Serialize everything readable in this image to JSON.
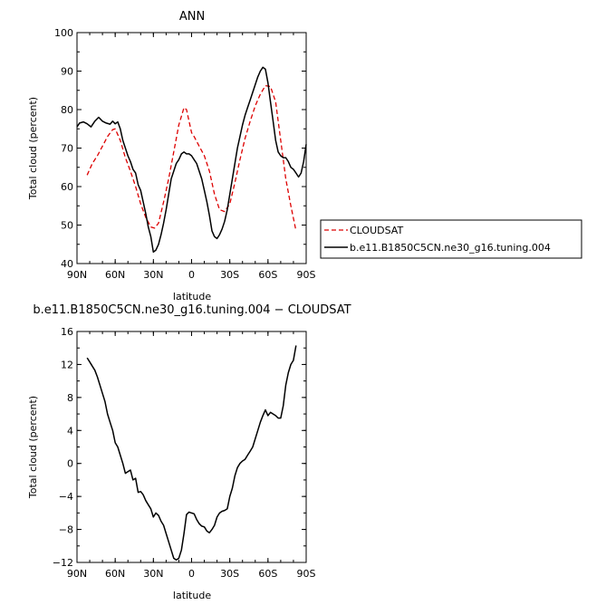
{
  "chart_data": [
    {
      "type": "line",
      "title": "ANN",
      "xlabel": "latitude",
      "ylabel": "Total cloud (percent)",
      "xlim": [
        90,
        -90
      ],
      "ylim": [
        40,
        100
      ],
      "xticks": [
        90,
        60,
        30,
        0,
        -30,
        -60,
        -90
      ],
      "xtick_labels": [
        "90N",
        "60N",
        "30N",
        "0",
        "30S",
        "60S",
        "90S"
      ],
      "yticks": [
        40,
        50,
        60,
        70,
        80,
        90,
        100
      ],
      "ytick_labels": [
        "40",
        "50",
        "60",
        "70",
        "80",
        "90",
        "100"
      ],
      "legend_position": "right",
      "series": [
        {
          "name": "CLOUDSAT",
          "color": "#dd0000",
          "dashed": true,
          "x": [
            82,
            78,
            74,
            70,
            66,
            62,
            60,
            56,
            52,
            48,
            44,
            40,
            36,
            32,
            29,
            26,
            22,
            18,
            14,
            10,
            6,
            4,
            2,
            0,
            -2,
            -6,
            -10,
            -14,
            -18,
            -22,
            -26,
            -30,
            -34,
            -38,
            -42,
            -46,
            -50,
            -54,
            -58,
            -62,
            -66,
            -70,
            -74,
            -78,
            -82
          ],
          "y": [
            63.0,
            66.0,
            68.0,
            70.5,
            73.0,
            74.8,
            75.0,
            72.0,
            67.5,
            64.0,
            60.0,
            55.5,
            52.0,
            49.5,
            49.2,
            50.5,
            56.0,
            62.0,
            69.0,
            76.0,
            80.5,
            80.0,
            77.0,
            74.0,
            73.0,
            70.5,
            68.0,
            64.0,
            58.0,
            54.0,
            53.5,
            55.5,
            61.0,
            67.0,
            72.5,
            77.0,
            81.0,
            84.0,
            86.2,
            86.0,
            82.0,
            72.0,
            62.0,
            55.0,
            48.5
          ]
        },
        {
          "name": "b.e11.B1850C5CN.ne30_g16.tuning.004",
          "color": "#000000",
          "dashed": false,
          "x": [
            90,
            88,
            85,
            82,
            79,
            76,
            73,
            70,
            67,
            64,
            62,
            60,
            58,
            56,
            54,
            52,
            50,
            48,
            46,
            44,
            42,
            40,
            38,
            36,
            34,
            32,
            30,
            28,
            26,
            24,
            22,
            20,
            18,
            16,
            14,
            12,
            10,
            8,
            6,
            4,
            2,
            0,
            -2,
            -4,
            -6,
            -8,
            -10,
            -12,
            -14,
            -16,
            -18,
            -20,
            -22,
            -24,
            -26,
            -28,
            -30,
            -32,
            -34,
            -36,
            -38,
            -40,
            -42,
            -44,
            -46,
            -48,
            -50,
            -52,
            -54,
            -56,
            -58,
            -60,
            -62,
            -64,
            -66,
            -68,
            -70,
            -72,
            -74,
            -76,
            -78,
            -80,
            -82,
            -84,
            -86,
            -88,
            -90
          ],
          "y": [
            75.5,
            76.5,
            76.8,
            76.3,
            75.5,
            77.0,
            78.0,
            77.0,
            76.5,
            76.2,
            77.0,
            76.3,
            76.8,
            75.0,
            72.0,
            70.0,
            68.0,
            66.5,
            64.5,
            63.5,
            60.5,
            59.0,
            56.0,
            53.0,
            49.5,
            47.0,
            43.0,
            43.5,
            45.0,
            47.5,
            50.5,
            54.0,
            58.0,
            62.0,
            64.0,
            66.0,
            67.0,
            68.5,
            69.0,
            68.5,
            68.5,
            68.0,
            67.0,
            66.0,
            64.0,
            62.0,
            59.0,
            56.0,
            52.5,
            48.5,
            47.0,
            46.5,
            47.5,
            49.0,
            51.0,
            54.0,
            58.0,
            62.0,
            66.0,
            70.0,
            73.0,
            76.0,
            78.5,
            80.5,
            82.5,
            84.5,
            86.5,
            88.5,
            90.0,
            91.0,
            90.5,
            87.0,
            82.0,
            77.0,
            72.0,
            69.0,
            68.0,
            67.5,
            67.5,
            66.5,
            65.0,
            64.5,
            63.5,
            62.5,
            63.5,
            66.5,
            71.0
          ]
        }
      ]
    },
    {
      "type": "line",
      "title": "b.e11.B1850C5CN.ne30_g16.tuning.004 − CLOUDSAT",
      "xlabel": "latitude",
      "ylabel": "Total cloud (percent)",
      "xlim": [
        90,
        -90
      ],
      "ylim": [
        -12,
        16
      ],
      "xticks": [
        90,
        60,
        30,
        0,
        -30,
        -60,
        -90
      ],
      "xtick_labels": [
        "90N",
        "60N",
        "30N",
        "0",
        "30S",
        "60S",
        "90S"
      ],
      "yticks": [
        -12,
        -8,
        -4,
        0,
        4,
        8,
        12,
        16
      ],
      "ytick_labels": [
        "−12",
        "−8",
        "−4",
        "0",
        "4",
        "8",
        "12",
        "16"
      ],
      "series": [
        {
          "color": "#000000",
          "dashed": false,
          "x": [
            82,
            80,
            78,
            76,
            74,
            72,
            70,
            68,
            66,
            64,
            62,
            60,
            58,
            56,
            54,
            52,
            50,
            48,
            46,
            44,
            42,
            40,
            38,
            36,
            34,
            32,
            30,
            28,
            26,
            24,
            22,
            20,
            18,
            16,
            14,
            12,
            10,
            8,
            6,
            4,
            2,
            0,
            -2,
            -4,
            -6,
            -8,
            -10,
            -12,
            -14,
            -16,
            -18,
            -20,
            -22,
            -24,
            -26,
            -28,
            -30,
            -32,
            -34,
            -36,
            -38,
            -40,
            -42,
            -44,
            -46,
            -48,
            -50,
            -52,
            -54,
            -56,
            -58,
            -60,
            -62,
            -64,
            -66,
            -68,
            -70,
            -72,
            -74,
            -76,
            -78,
            -80,
            -82
          ],
          "y": [
            12.8,
            12.3,
            11.8,
            11.3,
            10.5,
            9.5,
            8.5,
            7.5,
            6.0,
            5.0,
            4.0,
            2.5,
            2.0,
            1.0,
            0.0,
            -1.2,
            -1.0,
            -0.8,
            -2.0,
            -1.8,
            -3.5,
            -3.4,
            -3.8,
            -4.5,
            -5.0,
            -5.5,
            -6.5,
            -6.0,
            -6.3,
            -7.0,
            -7.5,
            -8.5,
            -9.5,
            -10.5,
            -11.5,
            -11.7,
            -11.5,
            -10.5,
            -8.5,
            -6.2,
            -5.9,
            -6.0,
            -6.1,
            -6.8,
            -7.3,
            -7.6,
            -7.7,
            -8.2,
            -8.4,
            -8.0,
            -7.5,
            -6.5,
            -6.0,
            -5.8,
            -5.7,
            -5.5,
            -4.0,
            -3.0,
            -1.5,
            -0.5,
            0.0,
            0.3,
            0.5,
            1.0,
            1.5,
            2.0,
            3.0,
            4.0,
            5.0,
            5.8,
            6.5,
            5.8,
            6.2,
            6.0,
            5.8,
            5.5,
            5.5,
            7.0,
            9.5,
            11.0,
            12.0,
            12.5,
            14.3
          ]
        }
      ]
    }
  ]
}
